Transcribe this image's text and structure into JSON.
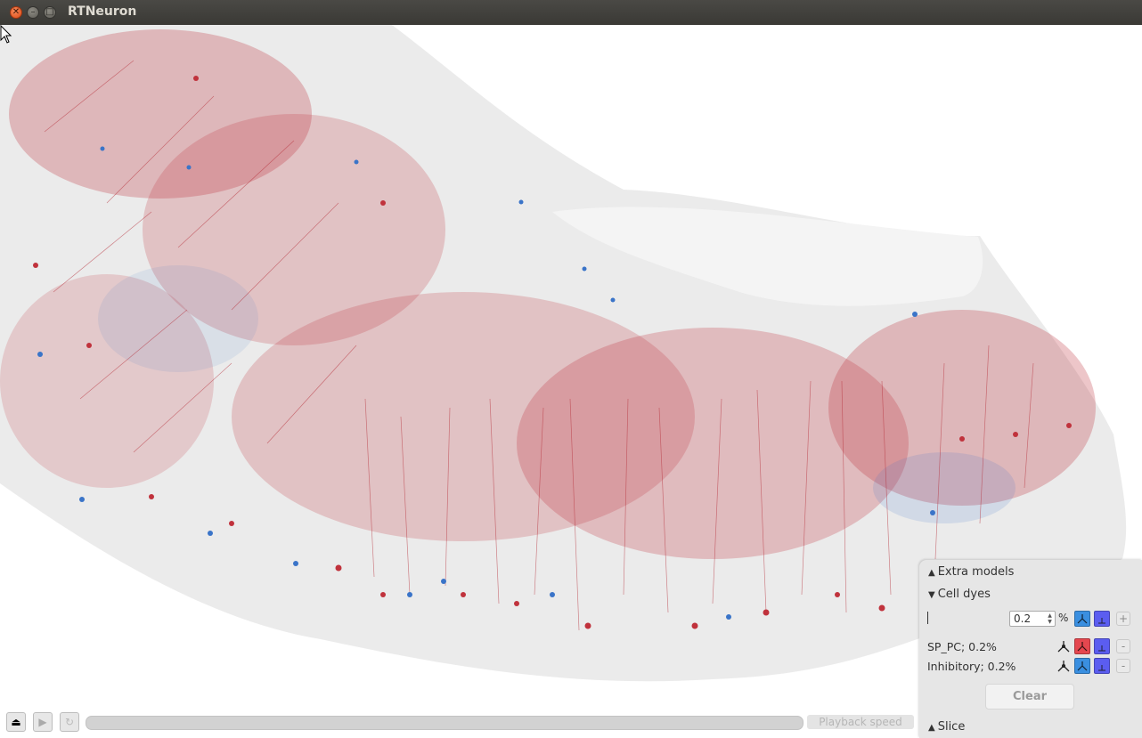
{
  "window": {
    "title": "RTNeuron"
  },
  "colors": {
    "pyramidal": "#c0323c",
    "inhibitory": "#3a74c8",
    "mesh": "#e2e2e2"
  },
  "playback": {
    "speed_label": "Playback speed"
  },
  "panel": {
    "extra_models": "Extra models",
    "cell_dyes": "Cell dyes",
    "percent_value": "0.2",
    "percent_unit": "%",
    "add_label": "+",
    "rows": [
      {
        "label": "SP_PC; 0.2%",
        "remove_label": "-"
      },
      {
        "label": "Inhibitory; 0.2%",
        "remove_label": "-"
      }
    ],
    "clear_label": "Clear",
    "slice": "Slice"
  }
}
